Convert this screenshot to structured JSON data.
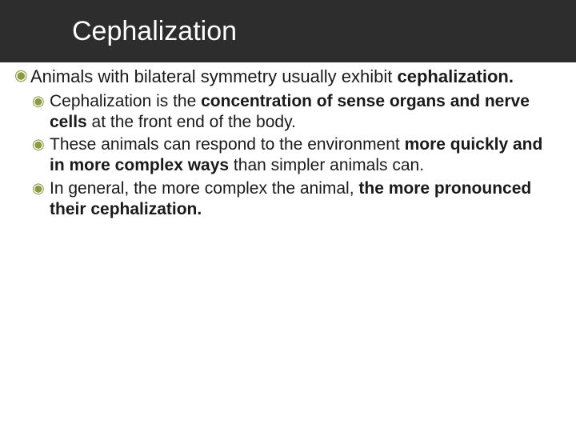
{
  "slide": {
    "title": "Cephalization",
    "title_bar_bg": "#2d2d2d",
    "title_color": "#ffffff",
    "title_fontsize": 34,
    "bullet_color": "#8a9a3e",
    "body_bg": "#ffffff",
    "text_color": "#1a1a1a",
    "level1_fontsize": 22,
    "level2_fontsize": 21,
    "bullets": {
      "main": {
        "prefix": "Animals with bilateral symmetry usually exhibit ",
        "bold": "cephalization."
      },
      "sub": [
        {
          "prefix": "Cephalization is the ",
          "bold": "concentration of sense organs and nerve cells",
          "suffix": " at the front end of the body."
        },
        {
          "prefix": "These animals can respond to the environment ",
          "bold": "more quickly and in more complex ways",
          "suffix": " than simpler animals can."
        },
        {
          "prefix": "In general, the more complex the animal, ",
          "bold": "the more pronounced their cephalization.",
          "suffix": ""
        }
      ]
    }
  }
}
